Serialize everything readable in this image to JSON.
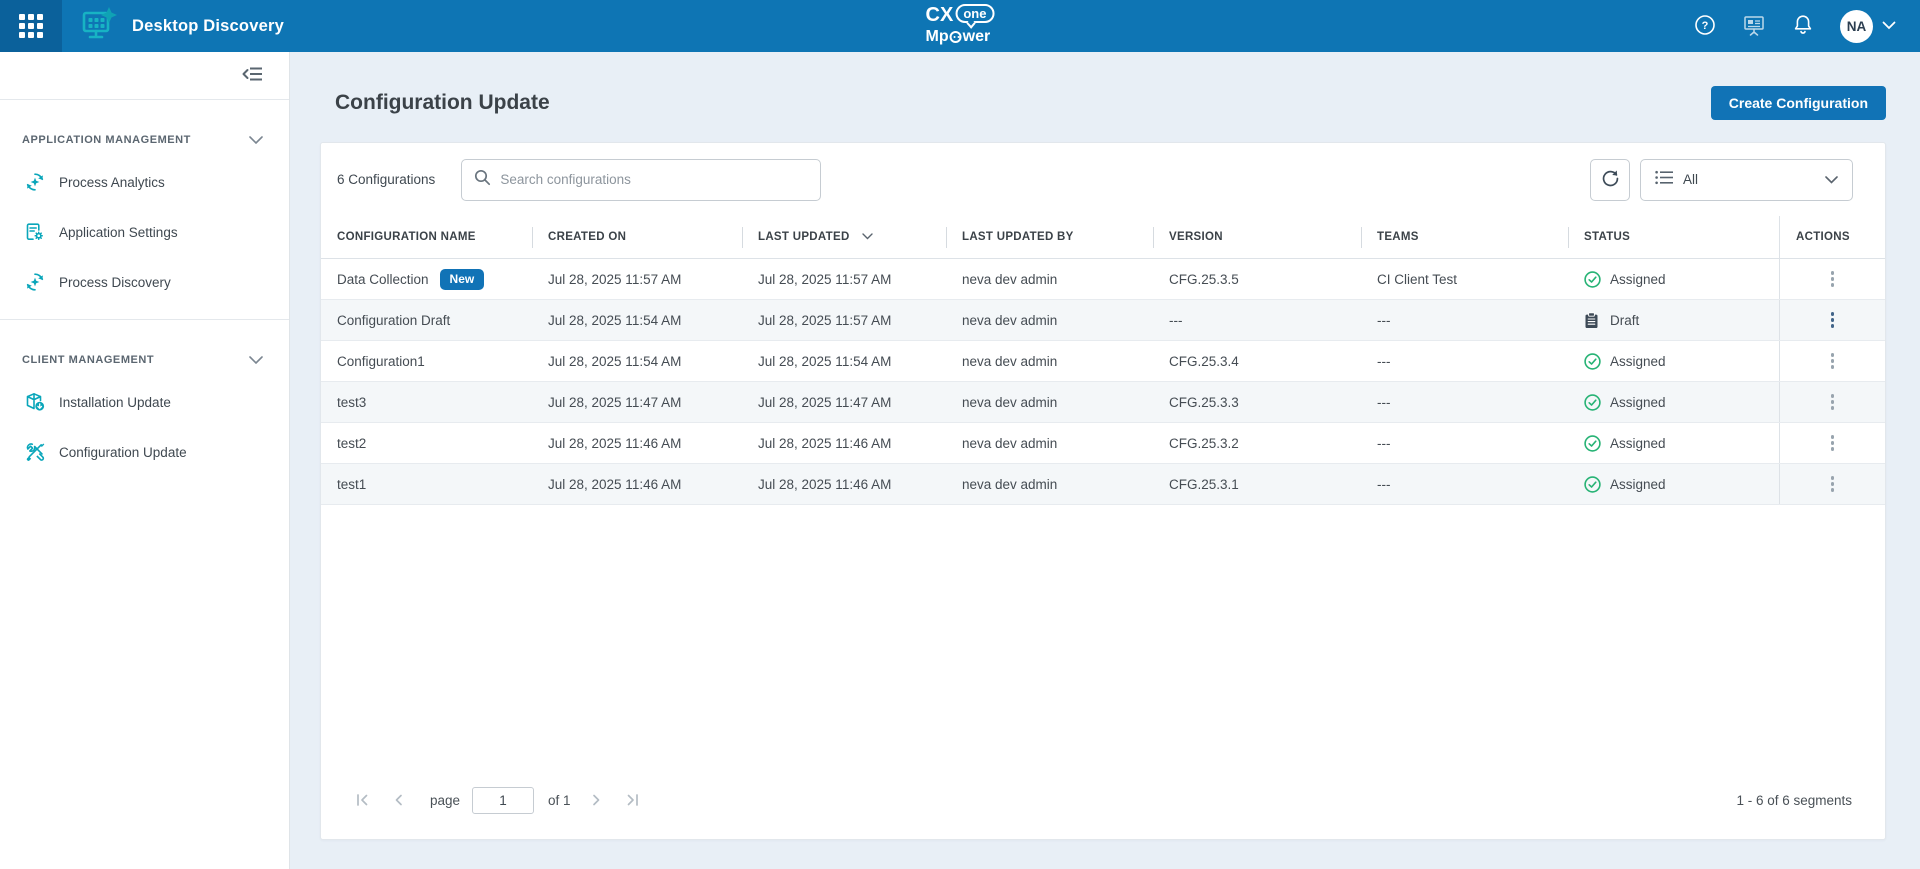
{
  "header": {
    "app_title": "Desktop Discovery",
    "brand": {
      "cx": "CX",
      "one": "one",
      "m_start": "Mp",
      "m_end": "wer"
    },
    "avatar_initials": "NA"
  },
  "sidebar": {
    "sections": [
      {
        "label": "APPLICATION MANAGEMENT",
        "items": [
          {
            "label": "Process Analytics",
            "icon": "process-analytics-icon"
          },
          {
            "label": "Application Settings",
            "icon": "application-settings-icon"
          },
          {
            "label": "Process Discovery",
            "icon": "process-discovery-icon"
          }
        ]
      },
      {
        "label": "CLIENT MANAGEMENT",
        "items": [
          {
            "label": "Installation Update",
            "icon": "installation-update-icon"
          },
          {
            "label": "Configuration Update",
            "icon": "configuration-update-icon"
          }
        ]
      }
    ]
  },
  "main": {
    "page_title": "Configuration Update",
    "create_button_label": "Create Configuration",
    "toolbar": {
      "count_label": "6 Configurations",
      "search_placeholder": "Search configurations",
      "filter_selected": "All"
    },
    "table": {
      "columns": [
        "CONFIGURATION NAME",
        "CREATED ON",
        "LAST UPDATED",
        "LAST UPDATED BY",
        "VERSION",
        "TEAMS",
        "STATUS",
        "ACTIONS"
      ],
      "sorted_by": "LAST UPDATED",
      "rows": [
        {
          "name": "Data Collection",
          "badge": "New",
          "created_on": "Jul 28, 2025 11:57 AM",
          "last_updated": "Jul 28, 2025 11:57 AM",
          "last_updated_by": "neva dev admin",
          "version": "CFG.25.3.5",
          "teams": "CI Client Test",
          "status": "Assigned",
          "status_type": "assigned",
          "actions_active": false
        },
        {
          "name": "Configuration Draft",
          "badge": null,
          "created_on": "Jul 28, 2025 11:54 AM",
          "last_updated": "Jul 28, 2025 11:57 AM",
          "last_updated_by": "neva dev admin",
          "version": "---",
          "teams": "---",
          "status": "Draft",
          "status_type": "draft",
          "actions_active": true
        },
        {
          "name": "Configuration1",
          "badge": null,
          "created_on": "Jul 28, 2025 11:54 AM",
          "last_updated": "Jul 28, 2025 11:54 AM",
          "last_updated_by": "neva dev admin",
          "version": "CFG.25.3.4",
          "teams": "---",
          "status": "Assigned",
          "status_type": "assigned",
          "actions_active": false
        },
        {
          "name": "test3",
          "badge": null,
          "created_on": "Jul 28, 2025 11:47 AM",
          "last_updated": "Jul 28, 2025 11:47 AM",
          "last_updated_by": "neva dev admin",
          "version": "CFG.25.3.3",
          "teams": "---",
          "status": "Assigned",
          "status_type": "assigned",
          "actions_active": false
        },
        {
          "name": "test2",
          "badge": null,
          "created_on": "Jul 28, 2025 11:46 AM",
          "last_updated": "Jul 28, 2025 11:46 AM",
          "last_updated_by": "neva dev admin",
          "version": "CFG.25.3.2",
          "teams": "---",
          "status": "Assigned",
          "status_type": "assigned",
          "actions_active": false
        },
        {
          "name": "test1",
          "badge": null,
          "created_on": "Jul 28, 2025 11:46 AM",
          "last_updated": "Jul 28, 2025 11:46 AM",
          "last_updated_by": "neva dev admin",
          "version": "CFG.25.3.1",
          "teams": "---",
          "status": "Assigned",
          "status_type": "assigned",
          "actions_active": false
        }
      ]
    },
    "pagination": {
      "page_label": "page",
      "page_value": "1",
      "of_label": "of 1",
      "range_label": "1 - 6 of 6 segments"
    }
  },
  "colors": {
    "header_bg": "#0e75b4",
    "launcher_bg": "#0b619b",
    "accent_blue": "#1173b6",
    "teal_icon": "#0aa6ba",
    "status_green": "#27b375",
    "draft_dark": "#3d4a57",
    "main_bg": "#e8eff6",
    "zebra_row": "#f4f7f9"
  }
}
